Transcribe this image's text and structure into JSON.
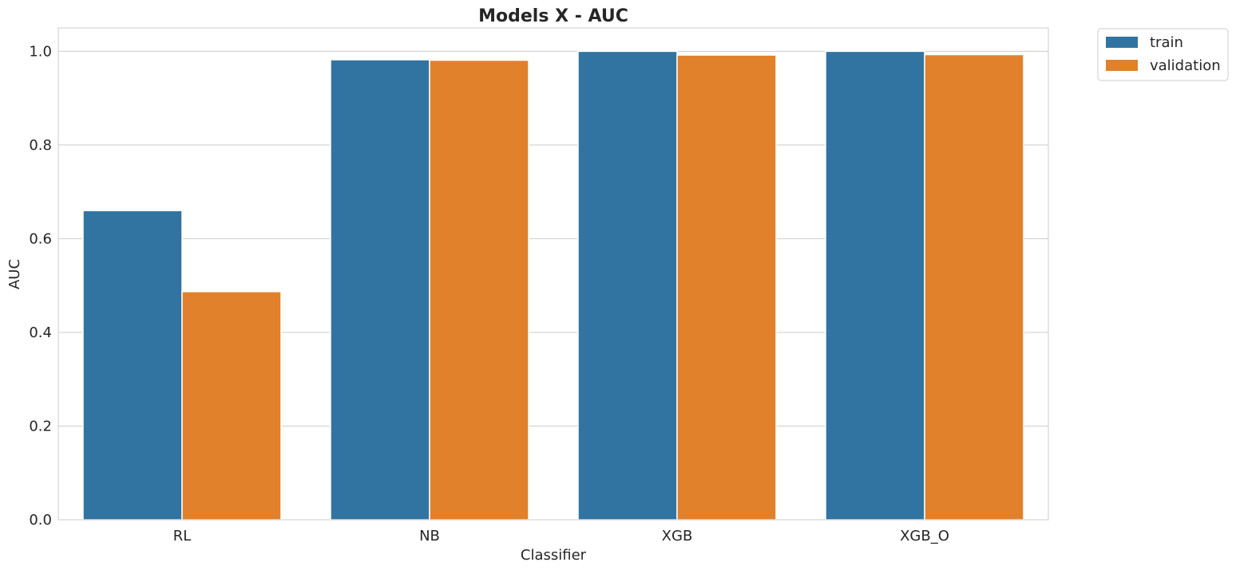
{
  "chart_data": {
    "type": "bar",
    "title": "Models X - AUC",
    "xlabel": "Classifier",
    "ylabel": "AUC",
    "categories": [
      "RL",
      "NB",
      "XGB",
      "XGB_O"
    ],
    "series": [
      {
        "name": "train",
        "color": "#3274a1",
        "values": [
          0.66,
          0.982,
          1.0,
          1.0
        ]
      },
      {
        "name": "validation",
        "color": "#e1812c",
        "values": [
          0.487,
          0.981,
          0.992,
          0.993
        ]
      }
    ],
    "ylim": [
      0,
      1.05
    ],
    "yticks": [
      0.0,
      0.2,
      0.4,
      0.6,
      0.8,
      1.0
    ],
    "ytick_labels": [
      "0.0",
      "0.2",
      "0.4",
      "0.6",
      "0.8",
      "1.0"
    ],
    "grid": true,
    "legend_position": "outside-top-right"
  }
}
